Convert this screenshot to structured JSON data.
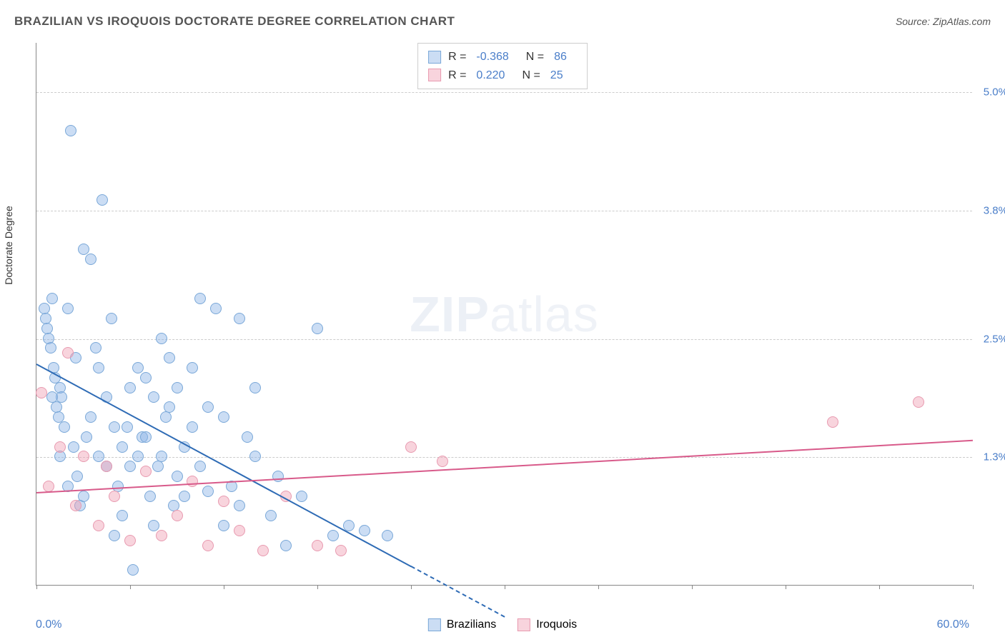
{
  "title": "BRAZILIAN VS IROQUOIS DOCTORATE DEGREE CORRELATION CHART",
  "source_label": "Source:",
  "source_value": "ZipAtlas.com",
  "watermark_a": "ZIP",
  "watermark_b": "atlas",
  "y_axis_label": "Doctorate Degree",
  "chart": {
    "type": "scatter",
    "xlim": [
      0,
      60
    ],
    "ylim": [
      0,
      5.5
    ],
    "x_min_label": "0.0%",
    "x_max_label": "60.0%",
    "x_ticks": [
      0,
      6,
      12,
      18,
      24,
      30,
      36,
      42,
      48,
      54,
      60
    ],
    "y_gridlines": [
      {
        "value": 1.3,
        "label": "1.3%"
      },
      {
        "value": 2.5,
        "label": "2.5%"
      },
      {
        "value": 3.8,
        "label": "3.8%"
      },
      {
        "value": 5.0,
        "label": "5.0%"
      }
    ],
    "background_color": "#ffffff",
    "grid_color": "#cccccc",
    "axis_color": "#888888",
    "tick_label_color": "#4a7ec9",
    "point_radius": 8,
    "point_stroke_width": 1.5,
    "series": [
      {
        "name": "Brazilians",
        "fill_color": "rgba(140,180,230,0.45)",
        "stroke_color": "#7aa8d8",
        "trend_color": "#2e6bb5",
        "points": [
          [
            0.5,
            2.8
          ],
          [
            0.6,
            2.7
          ],
          [
            0.7,
            2.6
          ],
          [
            0.8,
            2.5
          ],
          [
            0.9,
            2.4
          ],
          [
            1.0,
            2.9
          ],
          [
            1.1,
            2.2
          ],
          [
            1.2,
            2.1
          ],
          [
            1.3,
            1.8
          ],
          [
            1.4,
            1.7
          ],
          [
            1.5,
            2.0
          ],
          [
            1.6,
            1.9
          ],
          [
            1.8,
            1.6
          ],
          [
            2.0,
            2.8
          ],
          [
            2.2,
            4.6
          ],
          [
            2.4,
            1.4
          ],
          [
            2.6,
            1.1
          ],
          [
            2.8,
            0.8
          ],
          [
            3.0,
            3.4
          ],
          [
            3.2,
            1.5
          ],
          [
            3.5,
            3.3
          ],
          [
            3.8,
            2.4
          ],
          [
            4.0,
            1.3
          ],
          [
            4.2,
            3.9
          ],
          [
            4.5,
            1.2
          ],
          [
            4.8,
            2.7
          ],
          [
            5.0,
            0.5
          ],
          [
            5.2,
            1.0
          ],
          [
            5.5,
            1.4
          ],
          [
            5.8,
            1.6
          ],
          [
            6.0,
            2.0
          ],
          [
            6.2,
            0.15
          ],
          [
            6.5,
            1.3
          ],
          [
            6.8,
            1.5
          ],
          [
            7.0,
            2.1
          ],
          [
            7.3,
            0.9
          ],
          [
            7.5,
            1.9
          ],
          [
            7.8,
            1.2
          ],
          [
            8.0,
            2.5
          ],
          [
            8.3,
            1.7
          ],
          [
            8.5,
            2.3
          ],
          [
            8.8,
            0.8
          ],
          [
            9.0,
            1.1
          ],
          [
            9.5,
            1.4
          ],
          [
            10.0,
            2.2
          ],
          [
            10.5,
            2.9
          ],
          [
            11.0,
            0.95
          ],
          [
            11.5,
            2.8
          ],
          [
            12.0,
            0.6
          ],
          [
            12.5,
            1.0
          ],
          [
            13.0,
            2.7
          ],
          [
            13.5,
            1.5
          ],
          [
            14.0,
            1.3
          ],
          [
            15.0,
            0.7
          ],
          [
            15.5,
            1.1
          ],
          [
            16.0,
            0.4
          ],
          [
            17.0,
            0.9
          ],
          [
            18.0,
            2.6
          ],
          [
            19.0,
            0.5
          ],
          [
            20.0,
            0.6
          ],
          [
            21.0,
            0.55
          ],
          [
            22.5,
            0.5
          ],
          [
            1.0,
            1.9
          ],
          [
            1.5,
            1.3
          ],
          [
            2.0,
            1.0
          ],
          [
            2.5,
            2.3
          ],
          [
            3.0,
            0.9
          ],
          [
            3.5,
            1.7
          ],
          [
            4.0,
            2.2
          ],
          [
            4.5,
            1.9
          ],
          [
            5.0,
            1.6
          ],
          [
            5.5,
            0.7
          ],
          [
            6.0,
            1.2
          ],
          [
            6.5,
            2.2
          ],
          [
            7.0,
            1.5
          ],
          [
            7.5,
            0.6
          ],
          [
            8.0,
            1.3
          ],
          [
            8.5,
            1.8
          ],
          [
            9.0,
            2.0
          ],
          [
            9.5,
            0.9
          ],
          [
            10.0,
            1.6
          ],
          [
            10.5,
            1.2
          ],
          [
            11.0,
            1.8
          ],
          [
            12.0,
            1.7
          ],
          [
            13.0,
            0.8
          ],
          [
            14.0,
            2.0
          ]
        ],
        "trend": {
          "x1": 0,
          "y1": 2.25,
          "x2": 24,
          "y2": 0.2,
          "dash_to_x": 30
        },
        "R": "-0.368",
        "N": "86"
      },
      {
        "name": "Iroquois",
        "fill_color": "rgba(240,160,180,0.45)",
        "stroke_color": "#e89ab0",
        "trend_color": "#d85a8a",
        "points": [
          [
            0.3,
            1.95
          ],
          [
            0.8,
            1.0
          ],
          [
            1.5,
            1.4
          ],
          [
            2.0,
            2.35
          ],
          [
            2.5,
            0.8
          ],
          [
            3.0,
            1.3
          ],
          [
            4.0,
            0.6
          ],
          [
            4.5,
            1.2
          ],
          [
            5.0,
            0.9
          ],
          [
            6.0,
            0.45
          ],
          [
            7.0,
            1.15
          ],
          [
            8.0,
            0.5
          ],
          [
            9.0,
            0.7
          ],
          [
            10.0,
            1.05
          ],
          [
            11.0,
            0.4
          ],
          [
            12.0,
            0.85
          ],
          [
            13.0,
            0.55
          ],
          [
            14.5,
            0.35
          ],
          [
            16.0,
            0.9
          ],
          [
            18.0,
            0.4
          ],
          [
            19.5,
            0.35
          ],
          [
            24.0,
            1.4
          ],
          [
            26.0,
            1.25
          ],
          [
            51.0,
            1.65
          ],
          [
            56.5,
            1.85
          ]
        ],
        "trend": {
          "x1": 0,
          "y1": 0.95,
          "x2": 60,
          "y2": 1.48
        },
        "R": "0.220",
        "N": "25"
      }
    ]
  },
  "legend_labels": {
    "R": "R =",
    "N": "N ="
  }
}
